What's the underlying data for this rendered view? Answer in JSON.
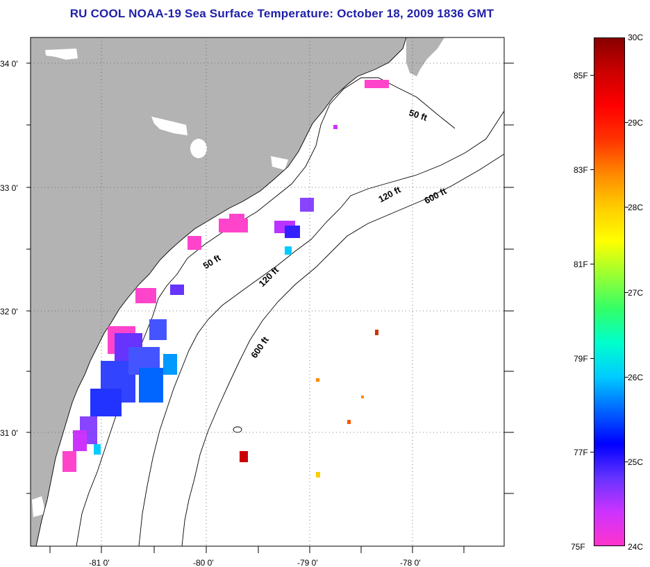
{
  "title": "RU COOL  NOAA-19  Sea Surface Temperature:  October 18, 2009 1836 GMT",
  "map": {
    "lat_labels": [
      "34 0'",
      "33 0'",
      "32 0'",
      "31 0'"
    ],
    "lon_labels": [
      "-81 0'",
      "-80 0'",
      "-79 0'",
      "-78 0'"
    ],
    "depth_labels": [
      "50 ft",
      "120 ft",
      "600 ft",
      "50 ft",
      "120 ft",
      "600 ft"
    ]
  },
  "colorbar": {
    "fahrenheit_labels": [
      "85F",
      "83F",
      "81F",
      "79F",
      "77F",
      "75F"
    ],
    "celsius_labels": [
      "30C",
      "29C",
      "28C",
      "27C",
      "26C",
      "25C",
      "24C"
    ],
    "colors": [
      "#ff33cc",
      "#cc33ff",
      "#6633ff",
      "#0000ff",
      "#0066ff",
      "#00ccff",
      "#00ffcc",
      "#33ff66",
      "#99ff33",
      "#ffff00",
      "#ffcc00",
      "#ff8800",
      "#ff3300",
      "#ff0000",
      "#cc0000",
      "#880000"
    ]
  }
}
